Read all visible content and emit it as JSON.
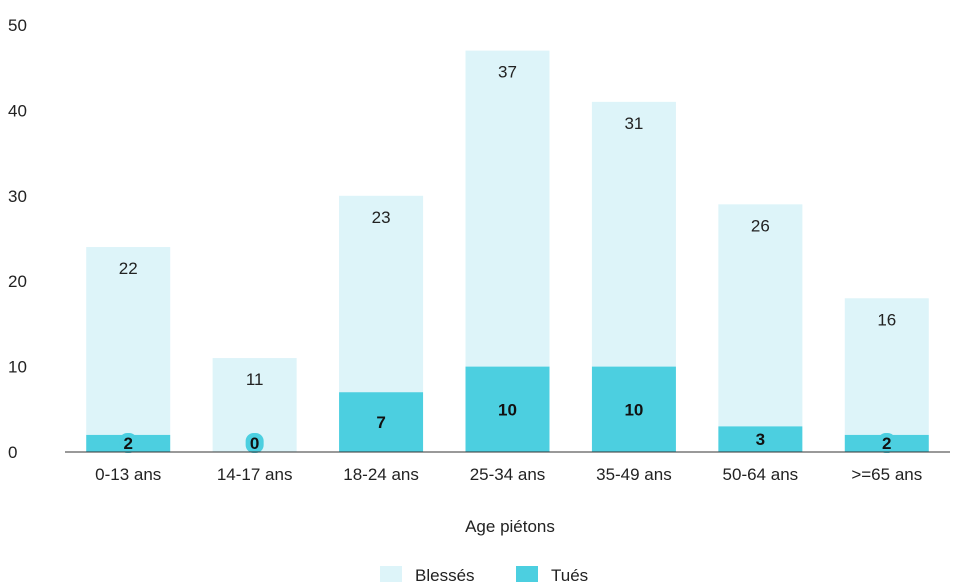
{
  "chart_data": {
    "type": "bar",
    "stacked": true,
    "categories": [
      "0-13 ans",
      "14-17 ans",
      "18-24 ans",
      "25-34 ans",
      "35-49 ans",
      "50-64 ans",
      ">=65 ans"
    ],
    "series": [
      {
        "name": "Tués",
        "values": [
          2,
          0,
          7,
          10,
          10,
          3,
          2
        ],
        "color": "#4CCFE0"
      },
      {
        "name": "Blessés",
        "values": [
          22,
          11,
          23,
          37,
          31,
          26,
          16
        ],
        "color": "#DDF4F9"
      }
    ],
    "xlabel": "Age piétons",
    "ylabel": "",
    "ylim": [
      0,
      50
    ],
    "yticks": [
      0,
      10,
      20,
      30,
      40,
      50
    ],
    "grid": false,
    "legend_position": "bottom"
  }
}
